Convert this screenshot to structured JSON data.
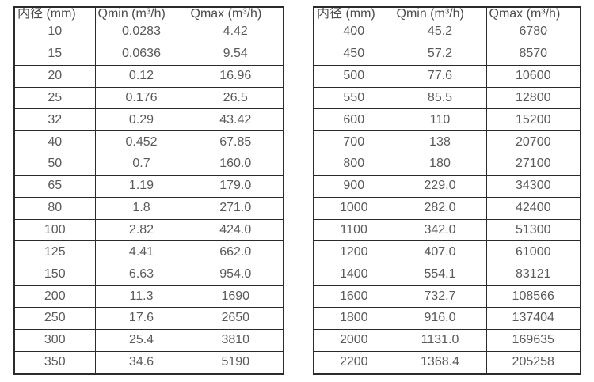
{
  "columns": [
    "内径 (mm)",
    "Qmin (m³/h)",
    "Qmax (m³/h)"
  ],
  "colors": {
    "border": "#2b2b2b",
    "header_text": "#4d4d4d",
    "cell_text": "#595959",
    "background": "#ffffff"
  },
  "tables": [
    {
      "name": "small-diameter-flow-table",
      "rows": [
        [
          "10",
          "0.0283",
          "4.42"
        ],
        [
          "15",
          "0.0636",
          "9.54"
        ],
        [
          "20",
          "0.12",
          "16.96"
        ],
        [
          "25",
          "0.176",
          "26.5"
        ],
        [
          "32",
          "0.29",
          "43.42"
        ],
        [
          "40",
          "0.452",
          "67.85"
        ],
        [
          "50",
          "0.7",
          "160.0"
        ],
        [
          "65",
          "1.19",
          "179.0"
        ],
        [
          "80",
          "1.8",
          "271.0"
        ],
        [
          "100",
          "2.82",
          "424.0"
        ],
        [
          "125",
          "4.41",
          "662.0"
        ],
        [
          "150",
          "6.63",
          "954.0"
        ],
        [
          "200",
          "11.3",
          "1690"
        ],
        [
          "250",
          "17.6",
          "2650"
        ],
        [
          "300",
          "25.4",
          "3810"
        ],
        [
          "350",
          "34.6",
          "5190"
        ]
      ]
    },
    {
      "name": "large-diameter-flow-table",
      "rows": [
        [
          "400",
          "45.2",
          "6780"
        ],
        [
          "450",
          "57.2",
          "8570"
        ],
        [
          "500",
          "77.6",
          "10600"
        ],
        [
          "550",
          "85.5",
          "12800"
        ],
        [
          "600",
          "110",
          "15200"
        ],
        [
          "700",
          "138",
          "20700"
        ],
        [
          "800",
          "180",
          "27100"
        ],
        [
          "900",
          "229.0",
          "34300"
        ],
        [
          "1000",
          "282.0",
          "42400"
        ],
        [
          "1100",
          "342.0",
          "51300"
        ],
        [
          "1200",
          "407.0",
          "61000"
        ],
        [
          "1400",
          "554.1",
          "83121"
        ],
        [
          "1600",
          "732.7",
          "108566"
        ],
        [
          "1800",
          "916.0",
          "137404"
        ],
        [
          "2000",
          "1131.0",
          "169635"
        ],
        [
          "2200",
          "1368.4",
          "205258"
        ]
      ]
    }
  ]
}
